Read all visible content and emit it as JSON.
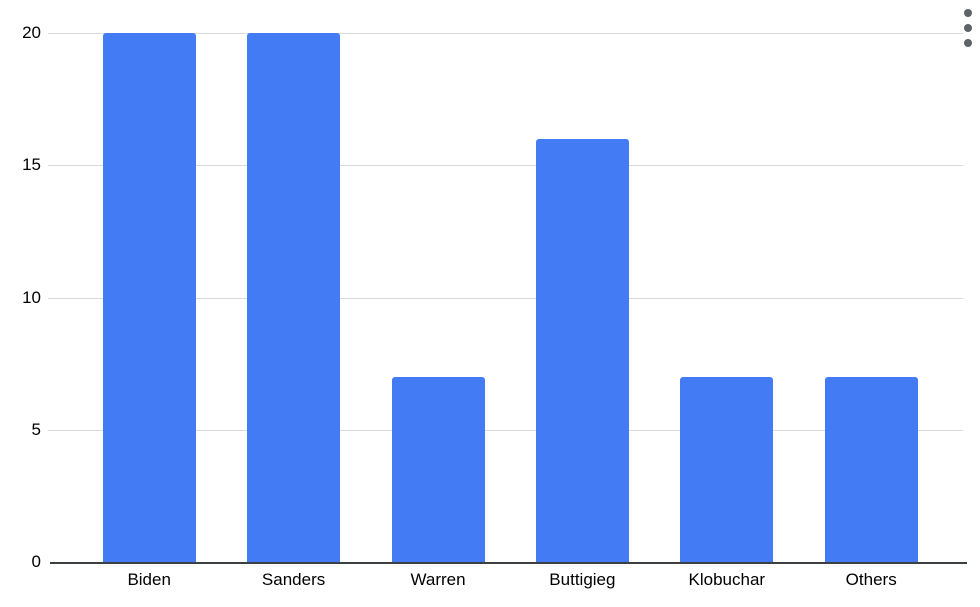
{
  "chart_data": {
    "type": "bar",
    "categories": [
      "Biden",
      "Sanders",
      "Warren",
      "Buttigieg",
      "Klobuchar",
      "Others"
    ],
    "values": [
      20,
      20,
      7,
      16,
      7,
      7
    ],
    "title": "",
    "xlabel": "",
    "ylabel": "",
    "ylim": [
      0,
      20
    ],
    "y_ticks": [
      0,
      5,
      10,
      15,
      20
    ],
    "grid": true,
    "legend": false,
    "colors": {
      "bar": "#437bf4",
      "gridline": "#d9d9d9",
      "axis": "#3c4043",
      "label": "#000000",
      "menu_icon": "#5f6368"
    }
  },
  "menu": {
    "icon": "kebab-menu-icon"
  }
}
